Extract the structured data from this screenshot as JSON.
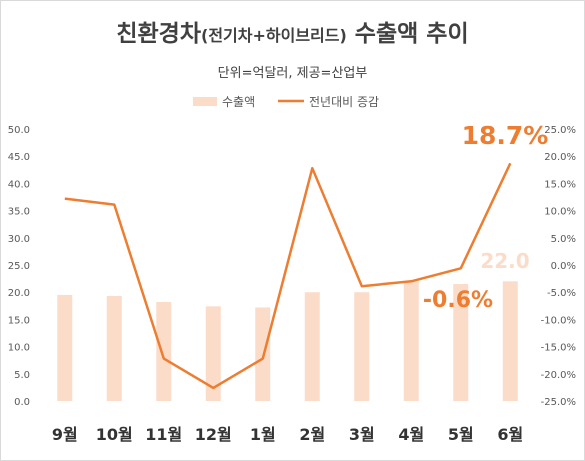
{
  "title_main_a": "친환경차",
  "title_paren": "(전기차+하이브리드)",
  "title_main_b": " 수출액 추이",
  "subtitle": "단위=억달러, 제공=산업부",
  "colors": {
    "bar": "#fbdcc9",
    "line": "#ed7d31",
    "axis_text": "#595959",
    "title": "#404040"
  },
  "chart_data": {
    "type": "bar+line",
    "categories": [
      "9월",
      "10월",
      "11월",
      "12월",
      "1월",
      "2월",
      "3월",
      "4월",
      "5월",
      "6월"
    ],
    "series": [
      {
        "name": "수출액",
        "type": "bar",
        "axis": "left",
        "values": [
          19.5,
          19.3,
          18.2,
          17.4,
          17.2,
          20.0,
          20.0,
          22.0,
          21.5,
          22.0
        ]
      },
      {
        "name": "전년대비 증감",
        "type": "line",
        "axis": "right",
        "unit": "%",
        "values": [
          12.2,
          11.1,
          -17.2,
          -22.6,
          -17.2,
          17.8,
          -3.9,
          -3.0,
          -0.6,
          18.7
        ]
      }
    ],
    "left_axis": {
      "ylim": [
        0,
        50
      ],
      "ticks": [
        "0.0",
        "5.0",
        "10.0",
        "15.0",
        "20.0",
        "25.0",
        "30.0",
        "35.0",
        "40.0",
        "45.0",
        "50.0"
      ]
    },
    "right_axis": {
      "ylim": [
        -25,
        25
      ],
      "ticks": [
        "-25.0%",
        "-20.0%",
        "-15.0%",
        "-10.0%",
        "-5.0%",
        "0.0%",
        "5.0%",
        "10.0%",
        "15.0%",
        "20.0%",
        "25.0%"
      ]
    },
    "grid": false,
    "legend_position": "top-center",
    "annotations": [
      {
        "text": "18.7%",
        "series": "전년대비 증감",
        "index": 9,
        "color": "#ed7d31"
      },
      {
        "text": "22.0",
        "series": "수출액",
        "index": 9,
        "color": "#fbdcc9"
      },
      {
        "text": "-0.6%",
        "series": "전년대비 증감",
        "index": 8,
        "color": "#ed7d31"
      }
    ]
  }
}
